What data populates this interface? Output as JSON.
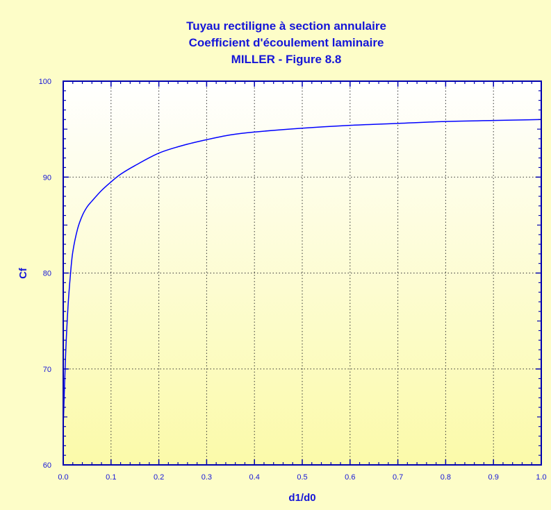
{
  "chart_data": {
    "type": "line",
    "title_lines": [
      "Tuyau rectiligne à section annulaire",
      "Coefficient d'écoulement laminaire",
      "MILLER - Figure 8.8"
    ],
    "xlabel": "d1/d0",
    "ylabel": "Cf",
    "xlim": [
      0,
      1
    ],
    "ylim": [
      60,
      100
    ],
    "xticks": [
      "0.0",
      "0.1",
      "0.2",
      "0.3",
      "0.4",
      "0.5",
      "0.6",
      "0.7",
      "0.8",
      "0.9",
      "1.0"
    ],
    "yticks": [
      "60",
      "70",
      "80",
      "90",
      "100"
    ],
    "grid": true,
    "series": [
      {
        "x": [
          0.0,
          0.005,
          0.01,
          0.015,
          0.02,
          0.03,
          0.04,
          0.05,
          0.06,
          0.08,
          0.1,
          0.12,
          0.15,
          0.2,
          0.25,
          0.3,
          0.35,
          0.4,
          0.5,
          0.6,
          0.7,
          0.8,
          0.9,
          1.0
        ],
        "y": [
          64.0,
          71.5,
          76.5,
          79.8,
          82.2,
          84.6,
          86.0,
          86.9,
          87.5,
          88.6,
          89.5,
          90.3,
          91.2,
          92.5,
          93.3,
          93.9,
          94.4,
          94.7,
          95.1,
          95.4,
          95.6,
          95.8,
          95.9,
          96.0
        ],
        "color": "#0000ff"
      }
    ],
    "colors": {
      "text": "#1515d8",
      "axis": "#0000b0",
      "line": "#0000ff",
      "background": "#fdfdc8",
      "plot_top": "#ffffff",
      "plot_bottom": "#fbfaa9"
    }
  }
}
